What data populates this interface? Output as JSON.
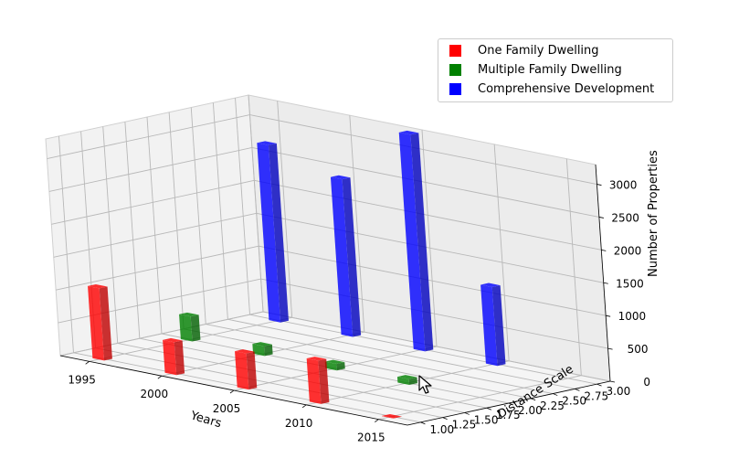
{
  "chart_data": {
    "type": "bar3d",
    "xlabel": "Years",
    "ylabel": "Distance Scale",
    "zlabel": "Number of Properties",
    "xlim": [
      1993,
      2017
    ],
    "ylim": [
      0.85,
      3.15
    ],
    "zlim": [
      0,
      3300
    ],
    "x_ticks": [
      "1995",
      "2000",
      "2005",
      "2010",
      "2015"
    ],
    "y_ticks": [
      "1.00",
      "1.25",
      "1.50",
      "1.75",
      "2.00",
      "2.25",
      "2.50",
      "2.75",
      "3.00"
    ],
    "z_ticks": [
      "0",
      "500",
      "1000",
      "1500",
      "2000",
      "2500",
      "3000"
    ],
    "series": [
      {
        "name": "One Family Dwelling",
        "color": "#ff0000",
        "depth": 1,
        "points": [
          {
            "x": 1995,
            "z": 1100
          },
          {
            "x": 2000,
            "z": 500
          },
          {
            "x": 2005,
            "z": 550
          },
          {
            "x": 2010,
            "z": 660
          },
          {
            "x": 2015,
            "z": 5
          }
        ]
      },
      {
        "name": "Multiple Family Dwelling",
        "color": "#008000",
        "depth": 2,
        "points": [
          {
            "x": 1995,
            "z": 380
          },
          {
            "x": 2000,
            "z": 150
          },
          {
            "x": 2005,
            "z": 100
          },
          {
            "x": 2010,
            "z": 90
          }
        ]
      },
      {
        "name": "Comprehensive Development",
        "color": "#0000ff",
        "depth": 3,
        "points": [
          {
            "x": 1995,
            "z": 2700
          },
          {
            "x": 2000,
            "z": 2400
          },
          {
            "x": 2005,
            "z": 3300
          },
          {
            "x": 2010,
            "z": 1200
          }
        ]
      }
    ],
    "legend_position": "top-right",
    "grid": true
  },
  "icons": {
    "cursor": "mouse-pointer-icon"
  }
}
